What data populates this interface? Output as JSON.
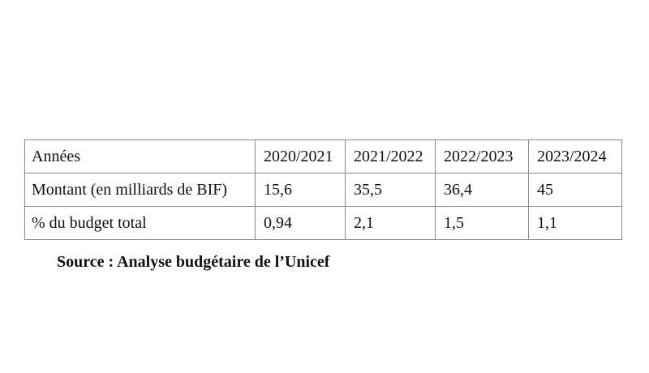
{
  "table": {
    "header": {
      "label": "Années",
      "years": [
        "2020/2021",
        "2021/2022",
        "2022/2023",
        "2023/2024"
      ]
    },
    "rows": [
      {
        "label": "Montant (en milliards de BIF)",
        "values": [
          "15,6",
          "35,5",
          "36,4",
          "45"
        ]
      },
      {
        "label": "% du budget total",
        "values": [
          "0,94",
          "2,1",
          "1,5",
          "1,1"
        ]
      }
    ]
  },
  "source": "Source : Analyse budgétaire de l’Unicef"
}
